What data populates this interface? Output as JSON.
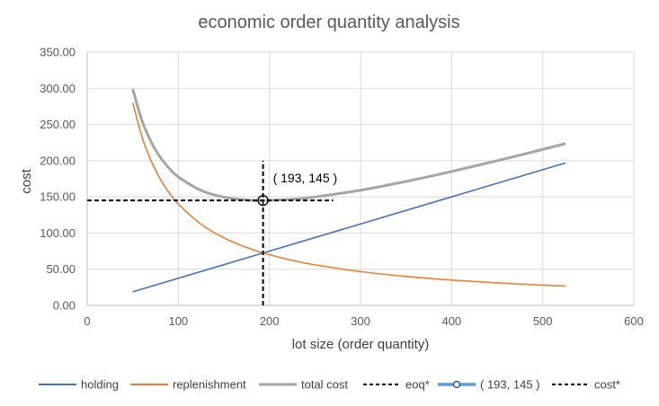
{
  "chart_data": {
    "type": "line",
    "title": "economic order quantity analysis",
    "xlabel": "lot size (order quantity)",
    "ylabel": "cost",
    "xlim": [
      0,
      600
    ],
    "ylim": [
      0,
      350
    ],
    "x_ticks": [
      "0",
      "100",
      "200",
      "300",
      "400",
      "500",
      "600"
    ],
    "y_ticks": [
      "0.00",
      "50.00",
      "100.00",
      "150.00",
      "200.00",
      "250.00",
      "300.00",
      "350.00"
    ],
    "grid": true,
    "legend_position": "bottom",
    "series": [
      {
        "name": "holding",
        "color": "#4472c4",
        "style": "solid",
        "x": [
          50,
          525
        ],
        "y": [
          18.75,
          196.9
        ]
      },
      {
        "name": "replenishment",
        "color": "#ed7d31",
        "style": "solid",
        "x": [
          50,
          60,
          70,
          80,
          90,
          100,
          125,
          150,
          175,
          193,
          225,
          250,
          300,
          350,
          400,
          450,
          500,
          525
        ],
        "y": [
          280,
          233.3,
          200,
          175,
          155.6,
          140,
          112,
          93.3,
          80,
          72.5,
          62.2,
          56,
          46.7,
          40,
          35,
          31.1,
          28,
          26.7
        ]
      },
      {
        "name": "total cost",
        "color": "#a5a5a5",
        "style": "solid",
        "x": [
          50,
          60,
          70,
          80,
          90,
          100,
          125,
          150,
          175,
          193,
          225,
          250,
          300,
          350,
          400,
          450,
          500,
          525
        ],
        "y": [
          298.8,
          255.8,
          226.3,
          205,
          189.4,
          177.5,
          158.9,
          149.6,
          145.6,
          144.9,
          146.6,
          149.8,
          159.2,
          171.3,
          185,
          199.9,
          215.5,
          223.6
        ]
      },
      {
        "name": "eoq*",
        "color": "#000000",
        "style": "dashed",
        "x": [
          193,
          193
        ],
        "y": [
          0,
          200
        ]
      },
      {
        "name": "( 193, 145 )",
        "color": "#5b9bd5",
        "style": "marker",
        "x": [
          193
        ],
        "y": [
          145
        ]
      },
      {
        "name": "cost*",
        "color": "#000000",
        "style": "dashed",
        "x": [
          0,
          270
        ],
        "y": [
          145,
          145
        ]
      }
    ],
    "annotations": [
      {
        "text": "( 193, 145 )",
        "x": 193,
        "y": 145
      }
    ]
  }
}
